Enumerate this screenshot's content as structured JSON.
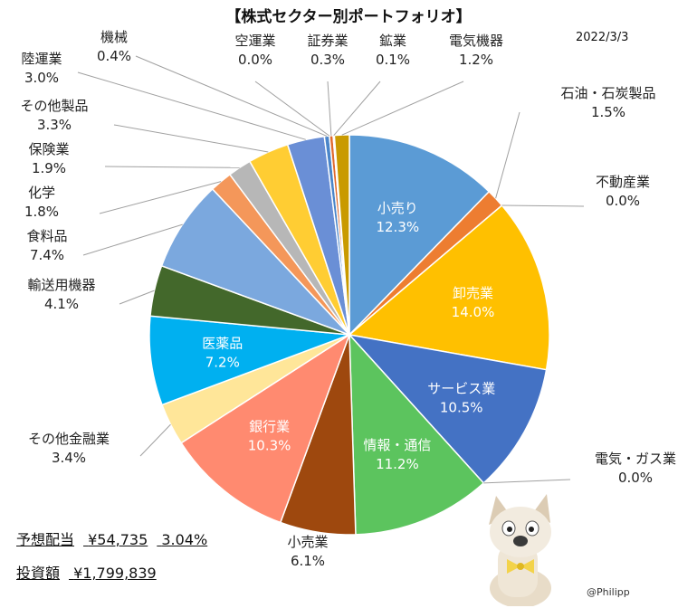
{
  "chart_data": {
    "type": "pie",
    "title": "【株式セクター別ポートフォリオ】",
    "date": "2022/3/3",
    "slices": [
      {
        "name": "小売り",
        "value": 12.3,
        "label": "12.3%",
        "color": "#5b9bd5"
      },
      {
        "name": "石油・石炭製品",
        "value": 1.5,
        "label": "1.5%",
        "color": "#ed7d31"
      },
      {
        "name": "不動産業",
        "value": 0.0,
        "label": "0.0%",
        "color": "#a5a5a5"
      },
      {
        "name": "卸売業",
        "value": 14.0,
        "label": "14.0%",
        "color": "#ffc000"
      },
      {
        "name": "サービス業",
        "value": 10.5,
        "label": "10.5%",
        "color": "#4472c4"
      },
      {
        "name": "電気・ガス業",
        "value": 0.0,
        "label": "0.0%",
        "color": "#70ad47"
      },
      {
        "name": "情報・通信",
        "value": 11.2,
        "label": "11.2%",
        "color": "#5cc45e"
      },
      {
        "name": "小売業",
        "value": 6.1,
        "label": "6.1%",
        "color": "#9e480e"
      },
      {
        "name": "銀行業",
        "value": 10.3,
        "label": "10.3%",
        "color": "#ff8a70"
      },
      {
        "name": "その他金融業",
        "value": 3.4,
        "label": "3.4%",
        "color": "#ffe699"
      },
      {
        "name": "医薬品",
        "value": 7.2,
        "label": "7.2%",
        "color": "#00b0f0"
      },
      {
        "name": "輸送用機器",
        "value": 4.1,
        "label": "4.1%",
        "color": "#43682b"
      },
      {
        "name": "食料品",
        "value": 7.4,
        "label": "7.4%",
        "color": "#7ba8de"
      },
      {
        "name": "化学",
        "value": 1.8,
        "label": "1.8%",
        "color": "#f4975a"
      },
      {
        "name": "保険業",
        "value": 1.9,
        "label": "1.9%",
        "color": "#b7b7b7"
      },
      {
        "name": "その他製品",
        "value": 3.3,
        "label": "3.3%",
        "color": "#ffcd33"
      },
      {
        "name": "陸運業",
        "value": 3.0,
        "label": "3.0%",
        "color": "#6a8fd6"
      },
      {
        "name": "機械",
        "value": 0.4,
        "label": "0.4%",
        "color": "#4a85c9"
      },
      {
        "name": "空運業",
        "value": 0.0,
        "label": "0.0%",
        "color": "#a9d18e"
      },
      {
        "name": "証券業",
        "value": 0.3,
        "label": "0.3%",
        "color": "#e06a2e"
      },
      {
        "name": "鉱業",
        "value": 0.1,
        "label": "0.1%",
        "color": "#8a8a8a"
      },
      {
        "name": "電気機器",
        "value": 1.2,
        "label": "1.2%",
        "color": "#c99a00"
      }
    ]
  },
  "summary": {
    "dividend_label": "予想配当",
    "dividend_amount": "¥54,735",
    "dividend_yield": "3.04%",
    "investment_label": "投資額",
    "investment_amount": "¥1,799,839"
  },
  "credit": "@Philipp"
}
